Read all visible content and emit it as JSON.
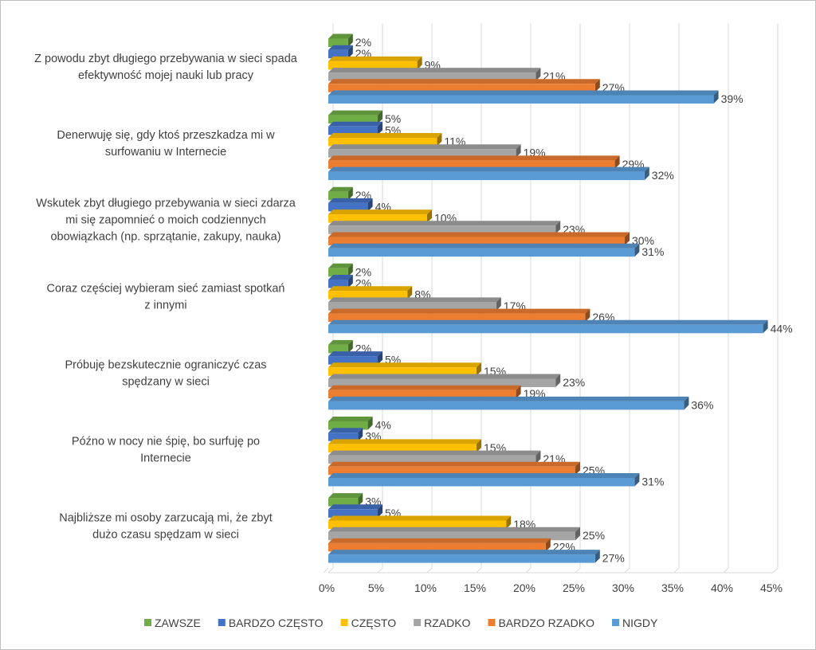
{
  "chart_data": {
    "type": "bar",
    "orientation": "horizontal",
    "style": "3d-clustered",
    "title": "",
    "xlabel": "",
    "ylabel": "",
    "xlim": [
      0,
      45
    ],
    "x_ticks": [
      "0%",
      "5%",
      "10%",
      "15%",
      "20%",
      "25%",
      "30%",
      "35%",
      "40%",
      "45%"
    ],
    "grid": true,
    "legend_position": "bottom",
    "categories": [
      [
        "Z powodu zbyt długiego przebywania w sieci spada",
        "efektywność mojej nauki lub pracy"
      ],
      [
        "Denerwuję się, gdy ktoś przeszkadza mi w",
        "surfowaniu w Internecie"
      ],
      [
        "Wskutek zbyt długiego przebywania w sieci zdarza",
        "mi się zapomnieć o moich codziennych",
        "obowiązkach (np. sprzątanie, zakupy, nauka)"
      ],
      [
        "Coraz częściej wybieram sieć zamiast spotkań",
        "z innymi"
      ],
      [
        "Próbuję bezskutecznie ograniczyć czas",
        "spędzany w sieci"
      ],
      [
        "Późno w nocy nie śpię, bo surfuję po",
        "Internecie"
      ],
      [
        "Najbliższe mi osoby zarzucają mi, że zbyt",
        "dużo czasu spędzam w sieci"
      ]
    ],
    "series": [
      {
        "name": "ZAWSZE",
        "color": "#70ad47",
        "values": [
          2,
          5,
          2,
          2,
          2,
          4,
          3
        ],
        "labels": [
          "2%",
          "5%",
          "2%",
          "2%",
          "2%",
          "4%",
          "3%"
        ]
      },
      {
        "name": "BARDZO CZĘSTO",
        "color": "#4472c4",
        "values": [
          2,
          5,
          4,
          2,
          5,
          3,
          5
        ],
        "labels": [
          "2%",
          "5%",
          "4%",
          "2%",
          "5%",
          "3%",
          "5%"
        ]
      },
      {
        "name": "CZĘSTO",
        "color": "#ffc000",
        "values": [
          9,
          11,
          10,
          8,
          15,
          15,
          18
        ],
        "labels": [
          "9%",
          "11%",
          "10%",
          "8%",
          "15%",
          "15%",
          "18%"
        ]
      },
      {
        "name": "RZADKO",
        "color": "#a5a5a5",
        "values": [
          21,
          19,
          23,
          17,
          23,
          21,
          25
        ],
        "labels": [
          "21%",
          "19%",
          "23%",
          "17%",
          "23%",
          "21%",
          "25%"
        ]
      },
      {
        "name": "BARDZO RZADKO",
        "color": "#ed7d31",
        "values": [
          27,
          29,
          30,
          26,
          19,
          25,
          22
        ],
        "labels": [
          "27%",
          "29%",
          "30%",
          "26%",
          "19%",
          "25%",
          "22%"
        ]
      },
      {
        "name": "NIGDY",
        "color": "#5b9bd5",
        "values": [
          39,
          32,
          31,
          44,
          36,
          31,
          27
        ],
        "labels": [
          "39%",
          "32%",
          "31%",
          "44%",
          "36%",
          "31%",
          "27%"
        ]
      }
    ]
  }
}
